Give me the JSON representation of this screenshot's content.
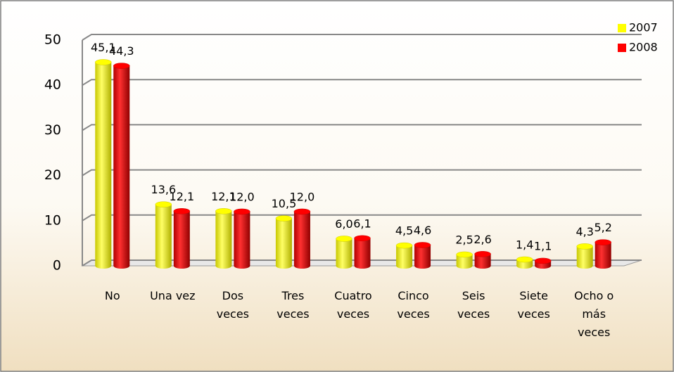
{
  "chart_data": {
    "type": "bar",
    "categories": [
      "No",
      "Una vez",
      "Dos veces",
      "Tres veces",
      "Cuatro veces",
      "Cinco veces",
      "Seis veces",
      "Siete veces",
      "Ocho o más veces"
    ],
    "series": [
      {
        "name": "2007",
        "color": "#ffff00",
        "values": [
          45.1,
          13.6,
          12.1,
          10.5,
          6.0,
          4.5,
          2.5,
          1.4,
          4.3
        ],
        "value_labels": [
          "45,1",
          "13,6",
          "12,1",
          "10,5",
          "6,0",
          "4,5",
          "2,5",
          "1,4",
          "4,3"
        ]
      },
      {
        "name": "2008",
        "color": "#ff0000",
        "values": [
          44.3,
          12.1,
          12.0,
          12.0,
          6.1,
          4.6,
          2.6,
          1.1,
          5.2
        ],
        "value_labels": [
          "44,3",
          "12,1",
          "12,0",
          "12,0",
          "6,1",
          "4,6",
          "2,6",
          "1,1",
          "5,2"
        ]
      }
    ],
    "ylim": [
      0,
      50
    ],
    "yticks": [
      0,
      10,
      20,
      30,
      40,
      50
    ],
    "grid": true,
    "legend": "top-right"
  }
}
